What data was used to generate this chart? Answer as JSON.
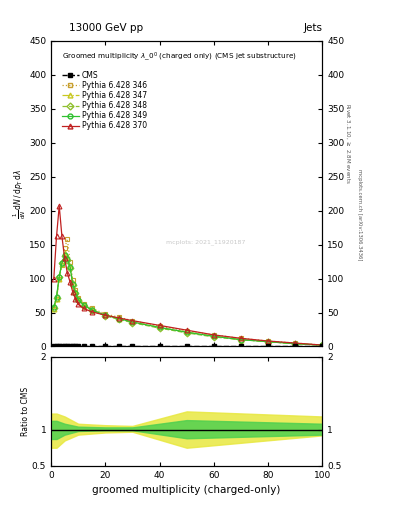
{
  "title_top": "13000 GeV pp",
  "title_top_right": "Jets",
  "xlabel": "groomed multiplicity (charged-only)",
  "ylabel_ratio": "Ratio to CMS",
  "xlim": [
    0,
    100
  ],
  "ylim_main": [
    0,
    450
  ],
  "ylim_ratio": [
    0.5,
    2.0
  ],
  "yticks_main": [
    0,
    50,
    100,
    150,
    200,
    250,
    300,
    350,
    400,
    450
  ],
  "series": [
    {
      "label": "Pythia 6.428 346",
      "color": "#c8a030",
      "linestyle": "dotted",
      "marker": "s",
      "x": [
        1,
        2,
        3,
        4,
        5,
        6,
        7,
        8,
        9,
        10,
        12,
        15,
        20,
        25,
        30,
        40,
        50,
        60,
        70,
        80,
        90,
        100
      ],
      "y": [
        55,
        70,
        100,
        120,
        145,
        158,
        125,
        98,
        83,
        72,
        63,
        56,
        48,
        43,
        38,
        30,
        23,
        17,
        12,
        8,
        5,
        2
      ]
    },
    {
      "label": "Pythia 6.428 347",
      "color": "#c8c820",
      "linestyle": "dashdot",
      "marker": "^",
      "x": [
        1,
        2,
        3,
        4,
        5,
        6,
        7,
        8,
        9,
        10,
        12,
        15,
        20,
        25,
        30,
        40,
        50,
        60,
        70,
        80,
        90,
        100
      ],
      "y": [
        55,
        70,
        100,
        122,
        138,
        132,
        118,
        93,
        80,
        70,
        61,
        54,
        46,
        41,
        36,
        28,
        21,
        15,
        10,
        7,
        4,
        2
      ]
    },
    {
      "label": "Pythia 6.428 348",
      "color": "#90c030",
      "linestyle": "dashed",
      "marker": "D",
      "x": [
        1,
        2,
        3,
        4,
        5,
        6,
        7,
        8,
        9,
        10,
        12,
        15,
        20,
        25,
        30,
        40,
        50,
        60,
        70,
        80,
        90,
        100
      ],
      "y": [
        57,
        72,
        102,
        123,
        133,
        128,
        116,
        91,
        78,
        68,
        60,
        53,
        45,
        40,
        35,
        27,
        20,
        14,
        10,
        7,
        4,
        2
      ]
    },
    {
      "label": "Pythia 6.428 349",
      "color": "#30c030",
      "linestyle": "solid",
      "marker": "o",
      "x": [
        1,
        2,
        3,
        4,
        5,
        6,
        7,
        8,
        9,
        10,
        12,
        15,
        20,
        25,
        30,
        40,
        50,
        60,
        70,
        80,
        90,
        100
      ],
      "y": [
        58,
        73,
        103,
        123,
        134,
        129,
        117,
        92,
        79,
        69,
        61,
        54,
        46,
        41,
        36,
        28,
        21,
        15,
        10,
        7,
        4,
        2
      ]
    },
    {
      "label": "Pythia 6.428 370",
      "color": "#c02020",
      "linestyle": "solid",
      "marker": "^",
      "x": [
        1,
        2,
        3,
        4,
        5,
        6,
        7,
        8,
        9,
        10,
        12,
        15,
        20,
        25,
        30,
        40,
        50,
        60,
        70,
        80,
        90,
        100
      ],
      "y": [
        100,
        162,
        207,
        162,
        130,
        108,
        95,
        80,
        70,
        62,
        56,
        51,
        46,
        42,
        38,
        31,
        24,
        17,
        12,
        8,
        5,
        2
      ]
    }
  ],
  "cms_x": [
    1,
    2,
    3,
    4,
    5,
    6,
    7,
    8,
    9,
    10,
    12,
    15,
    20,
    25,
    30,
    40,
    50,
    60,
    70,
    80,
    90,
    100
  ],
  "ratio_yellow_x": [
    0,
    2,
    5,
    10,
    20,
    30,
    50,
    100
  ],
  "ratio_yellow_low": [
    0.75,
    0.75,
    0.85,
    0.93,
    0.96,
    0.97,
    0.75,
    0.92
  ],
  "ratio_yellow_high": [
    1.22,
    1.22,
    1.18,
    1.08,
    1.06,
    1.05,
    1.25,
    1.18
  ],
  "ratio_green_x": [
    0,
    2,
    5,
    10,
    20,
    30,
    50,
    100
  ],
  "ratio_green_low": [
    0.87,
    0.87,
    0.93,
    0.98,
    0.99,
    0.99,
    0.88,
    0.93
  ],
  "ratio_green_high": [
    1.12,
    1.12,
    1.08,
    1.04,
    1.03,
    1.03,
    1.13,
    1.08
  ],
  "watermark": "mcplots: 2021_11920187"
}
